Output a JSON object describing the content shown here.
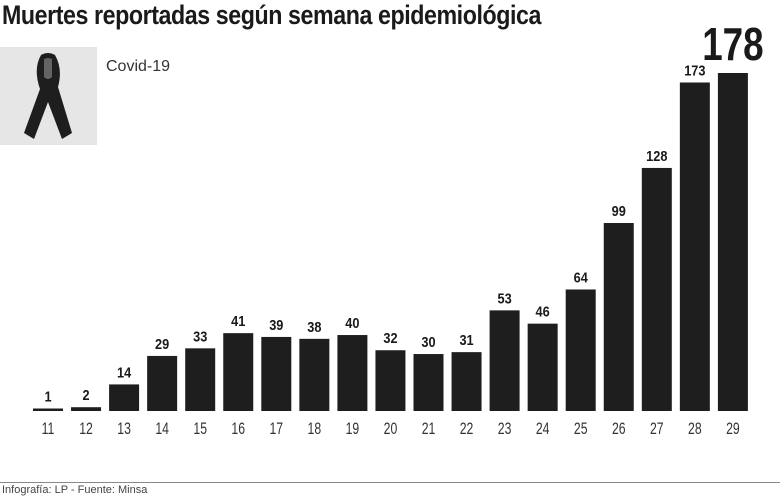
{
  "chart_data": {
    "type": "bar",
    "title": "Muertes reportadas según semana epidemiológica",
    "legend": "Covid-19",
    "categories": [
      "11",
      "12",
      "13",
      "14",
      "15",
      "16",
      "17",
      "18",
      "19",
      "20",
      "21",
      "22",
      "23",
      "24",
      "25",
      "26",
      "27",
      "28",
      "29"
    ],
    "values": [
      1,
      2,
      14,
      29,
      33,
      41,
      39,
      38,
      40,
      32,
      30,
      31,
      53,
      46,
      64,
      99,
      128,
      173,
      178
    ],
    "highlight_value_label": "178",
    "xlabel": "",
    "ylabel": "",
    "ylim": [
      0,
      178
    ],
    "grid": false,
    "bar_color": "#1e1e1e",
    "icon": "mourning-ribbon-icon"
  },
  "footer": "Infografía: LP - Fuente: Minsa"
}
